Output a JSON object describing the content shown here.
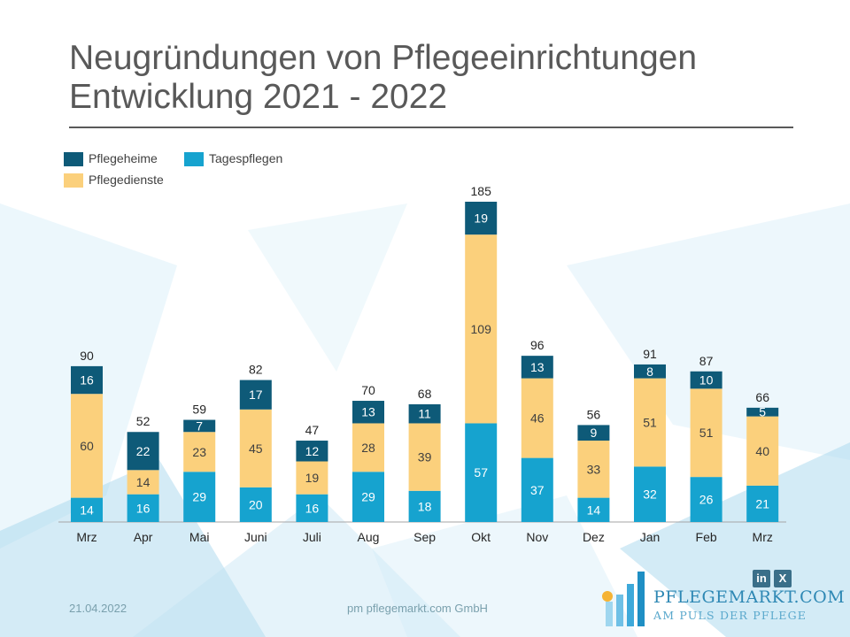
{
  "title": {
    "line1": "Neugründungen von Pflegeeinrichtungen",
    "line2": "Entwicklung 2021 - 2022"
  },
  "legend": {
    "pflegeheime": "Pflegeheime",
    "tagespflegen": "Tagespflegen",
    "pflegedienste": "Pflegedienste"
  },
  "colors": {
    "pflegeheime": "#0e5a78",
    "tagespflegen": "#16a3cf",
    "pflegedienste": "#fbd07c"
  },
  "chart_data": {
    "type": "bar",
    "stacked": true,
    "title": "Neugründungen von Pflegeeinrichtungen Entwicklung 2021 - 2022",
    "xlabel": "",
    "ylabel": "",
    "ylim": [
      0,
      185
    ],
    "grid": false,
    "legend_position": "top-left",
    "categories": [
      "Mrz",
      "Apr",
      "Mai",
      "Juni",
      "Juli",
      "Aug",
      "Sep",
      "Okt",
      "Nov",
      "Dez",
      "Jan",
      "Feb",
      "Mrz"
    ],
    "series": [
      {
        "name": "Tagespflegen",
        "values": [
          14,
          16,
          29,
          20,
          16,
          29,
          18,
          57,
          37,
          14,
          32,
          26,
          21
        ]
      },
      {
        "name": "Pflegedienste",
        "values": [
          60,
          14,
          23,
          45,
          19,
          28,
          39,
          109,
          46,
          33,
          51,
          51,
          40
        ]
      },
      {
        "name": "Pflegeheime",
        "values": [
          16,
          22,
          7,
          17,
          12,
          13,
          11,
          19,
          13,
          9,
          8,
          10,
          5
        ]
      }
    ],
    "totals": [
      90,
      52,
      59,
      82,
      47,
      70,
      68,
      185,
      96,
      56,
      91,
      87,
      66
    ]
  },
  "footer": {
    "date": "21.04.2022",
    "company": "pm pflegemarkt.com GmbH"
  },
  "brand": {
    "name": "PFLEGEMARKT.COM",
    "tagline": "AM PULS DER PFLEGE",
    "linkedin": "in",
    "xing": "X"
  }
}
